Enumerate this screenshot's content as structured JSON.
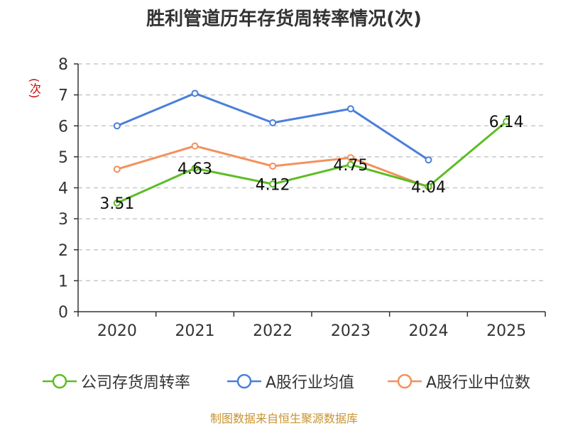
{
  "title": "胜利管道历年存货周转率情况(次)",
  "y_unit": "(次)",
  "source": "制图数据来自恒生聚源数据库",
  "chart_data": {
    "type": "line",
    "categories": [
      "2020",
      "2021",
      "2022",
      "2023",
      "2024",
      "2025"
    ],
    "ylim": [
      0,
      8
    ],
    "yticks": [
      0,
      1,
      2,
      3,
      4,
      5,
      6,
      7,
      8
    ],
    "grid": true,
    "legend_position": "bottom",
    "series": [
      {
        "name": "公司存货周转率",
        "color": "#5cbd24",
        "values": [
          3.51,
          4.63,
          4.12,
          4.75,
          4.04,
          6.14
        ],
        "show_labels": true
      },
      {
        "name": "A股行业均值",
        "color": "#4a7fdb",
        "values": [
          6.0,
          7.05,
          6.1,
          6.55,
          4.9,
          null
        ],
        "show_labels": false
      },
      {
        "name": "A股行业中位数",
        "color": "#f4905a",
        "values": [
          4.6,
          5.35,
          4.7,
          4.97,
          4.02,
          null
        ],
        "show_labels": false
      }
    ]
  }
}
